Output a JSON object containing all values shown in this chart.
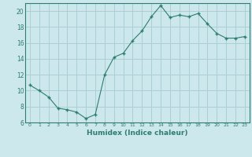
{
  "x": [
    0,
    1,
    2,
    3,
    4,
    5,
    6,
    7,
    8,
    9,
    10,
    11,
    12,
    13,
    14,
    15,
    16,
    17,
    18,
    19,
    20,
    21,
    22,
    23
  ],
  "y": [
    10.7,
    10.0,
    9.2,
    7.8,
    7.6,
    7.3,
    6.5,
    7.0,
    12.0,
    14.2,
    14.7,
    16.3,
    17.5,
    19.3,
    20.7,
    19.2,
    19.5,
    19.3,
    19.7,
    18.4,
    17.2,
    16.6,
    16.6,
    16.8
  ],
  "xlabel": "Humidex (Indice chaleur)",
  "ylim": [
    6,
    21
  ],
  "xlim": [
    -0.5,
    23.5
  ],
  "yticks": [
    6,
    8,
    10,
    12,
    14,
    16,
    18,
    20
  ],
  "xticks": [
    0,
    1,
    2,
    3,
    4,
    5,
    6,
    7,
    8,
    9,
    10,
    11,
    12,
    13,
    14,
    15,
    16,
    17,
    18,
    19,
    20,
    21,
    22,
    23
  ],
  "line_color": "#2e7d6e",
  "marker": "+",
  "bg_color": "#cce8ec",
  "grid_color": "#aacfd4",
  "label_color": "#2e7d6e",
  "tick_color": "#2e7d6e",
  "spine_color": "#2e7d6e"
}
